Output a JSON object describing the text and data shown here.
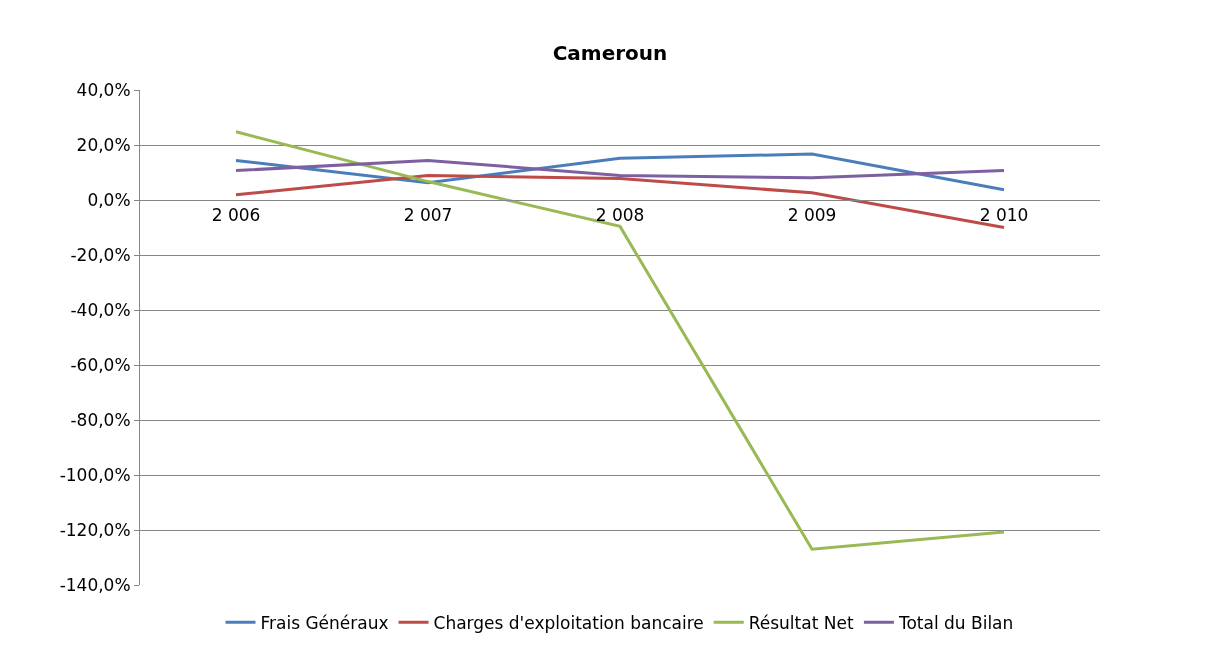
{
  "chart_data": {
    "type": "line",
    "title": "Cameroun",
    "categories": [
      "2 006",
      "2 007",
      "2 008",
      "2 009",
      "2 010"
    ],
    "series": [
      {
        "name": "Frais Généraux",
        "color": "#4a7ebb",
        "values": [
          14.4,
          6.3,
          15.2,
          16.7,
          3.7
        ]
      },
      {
        "name": "Charges d'exploitation bancaire",
        "color": "#be4b48",
        "values": [
          1.9,
          8.9,
          7.8,
          2.6,
          -10
        ]
      },
      {
        "name": "Résultat Net",
        "color": "#98b954",
        "values": [
          24.8,
          6.7,
          -9.6,
          -127,
          -120.7
        ]
      },
      {
        "name": "Total du Bilan",
        "color": "#7d60a0",
        "values": [
          10.7,
          14.4,
          8.9,
          8.1,
          10.7
        ]
      }
    ],
    "ylim": [
      -140,
      40
    ],
    "yticks": [
      {
        "value": -140,
        "label": "-140,0%"
      },
      {
        "value": -120,
        "label": "-120,0%"
      },
      {
        "value": -100,
        "label": "-100,0%"
      },
      {
        "value": -80,
        "label": "-80,0%"
      },
      {
        "value": -60,
        "label": "-60,0%"
      },
      {
        "value": -40,
        "label": "-40,0%"
      },
      {
        "value": -20,
        "label": "-20,0%"
      },
      {
        "value": 0,
        "label": "0,0%"
      },
      {
        "value": 20,
        "label": "20,0%"
      },
      {
        "value": 40,
        "label": "40,0%"
      }
    ],
    "grid": "y",
    "legend": "bottom",
    "marker": "none",
    "line_style": "solid"
  }
}
